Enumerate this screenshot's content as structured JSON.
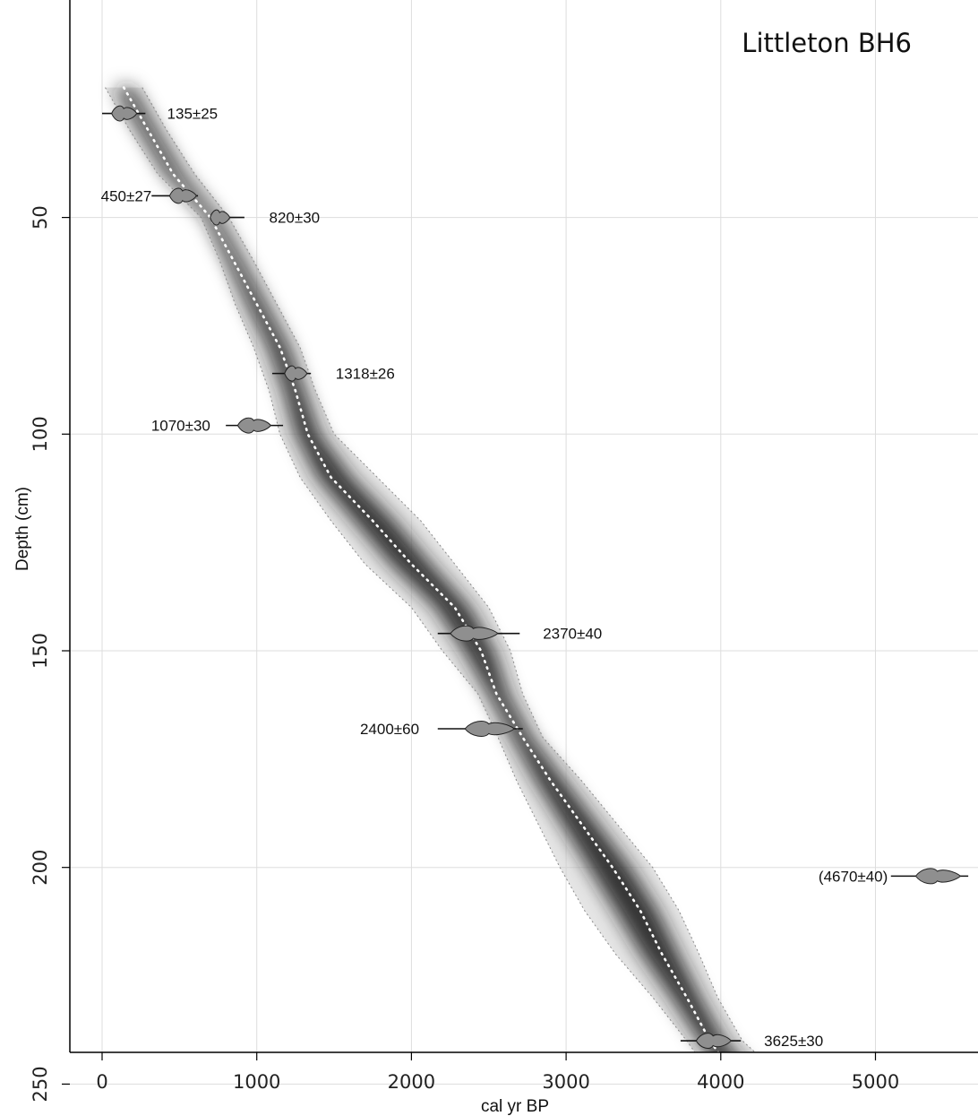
{
  "chart_data": {
    "type": "scatter",
    "title": "Littleton BH6",
    "xlabel": "cal yr BP",
    "ylabel": "Depth (cm)",
    "xlim": [
      -200,
      5600
    ],
    "ylim": [
      260,
      18
    ],
    "x_ticks": [
      "0",
      "1000",
      "2000",
      "3000",
      "4000",
      "5000"
    ],
    "y_ticks": [
      "50",
      "100",
      "150",
      "200",
      "250"
    ],
    "grid": true,
    "age_model": {
      "mean": [
        [
          20,
          140
        ],
        [
          30,
          300
        ],
        [
          40,
          460
        ],
        [
          50,
          700
        ],
        [
          60,
          850
        ],
        [
          70,
          1000
        ],
        [
          80,
          1150
        ],
        [
          90,
          1250
        ],
        [
          100,
          1330
        ],
        [
          110,
          1480
        ],
        [
          120,
          1750
        ],
        [
          130,
          2000
        ],
        [
          140,
          2280
        ],
        [
          150,
          2450
        ],
        [
          160,
          2550
        ],
        [
          170,
          2720
        ],
        [
          180,
          2900
        ],
        [
          190,
          3100
        ],
        [
          200,
          3300
        ],
        [
          210,
          3480
        ],
        [
          220,
          3620
        ],
        [
          230,
          3780
        ],
        [
          240,
          3930
        ],
        [
          250,
          4130
        ]
      ],
      "range_min": [
        [
          20,
          20
        ],
        [
          30,
          180
        ],
        [
          40,
          360
        ],
        [
          50,
          640
        ],
        [
          60,
          760
        ],
        [
          70,
          860
        ],
        [
          80,
          980
        ],
        [
          90,
          1080
        ],
        [
          100,
          1150
        ],
        [
          110,
          1280
        ],
        [
          120,
          1480
        ],
        [
          130,
          1700
        ],
        [
          140,
          2000
        ],
        [
          150,
          2200
        ],
        [
          160,
          2430
        ],
        [
          170,
          2560
        ],
        [
          180,
          2680
        ],
        [
          190,
          2820
        ],
        [
          200,
          2960
        ],
        [
          210,
          3120
        ],
        [
          220,
          3320
        ],
        [
          230,
          3560
        ],
        [
          240,
          3780
        ],
        [
          250,
          3980
        ]
      ],
      "range_max": [
        [
          20,
          260
        ],
        [
          30,
          420
        ],
        [
          40,
          600
        ],
        [
          50,
          820
        ],
        [
          60,
          980
        ],
        [
          70,
          1130
        ],
        [
          80,
          1280
        ],
        [
          90,
          1380
        ],
        [
          100,
          1500
        ],
        [
          110,
          1780
        ],
        [
          120,
          2060
        ],
        [
          130,
          2280
        ],
        [
          140,
          2500
        ],
        [
          150,
          2640
        ],
        [
          160,
          2720
        ],
        [
          170,
          2850
        ],
        [
          180,
          3100
        ],
        [
          190,
          3330
        ],
        [
          200,
          3560
        ],
        [
          210,
          3730
        ],
        [
          220,
          3860
        ],
        [
          230,
          3980
        ],
        [
          240,
          4140
        ],
        [
          250,
          4450
        ]
      ]
    },
    "dates": [
      {
        "label": "135±25",
        "depth": 26,
        "age": 140,
        "xmin": 0,
        "xmax": 280,
        "label_side": "right",
        "label_x": 420
      },
      {
        "label": "450±27",
        "depth": 45,
        "age": 520,
        "xmin": 320,
        "xmax": 620,
        "label_side": "left",
        "label_x": 320
      },
      {
        "label": "820±30",
        "depth": 50,
        "age": 760,
        "xmin": 700,
        "xmax": 920,
        "label_side": "right",
        "label_x": 1080
      },
      {
        "label": "1318±26",
        "depth": 86,
        "age": 1250,
        "xmin": 1100,
        "xmax": 1350,
        "label_side": "right",
        "label_x": 1510
      },
      {
        "label": "1070±30",
        "depth": 98,
        "age": 980,
        "xmin": 800,
        "xmax": 1170,
        "label_side": "left",
        "label_x": 700
      },
      {
        "label": "2370±40",
        "depth": 146,
        "age": 2400,
        "xmin": 2170,
        "xmax": 2700,
        "label_side": "right",
        "label_x": 2850
      },
      {
        "label": "2400±60",
        "depth": 168,
        "age": 2500,
        "xmin": 2170,
        "xmax": 2720,
        "label_side": "left",
        "label_x": 2050
      },
      {
        "label": "(4670±40)",
        "depth": 202,
        "age": 5400,
        "xmin": 5100,
        "xmax": 5600,
        "label_side": "left",
        "label_x": 5080
      },
      {
        "label": "3625±30",
        "depth": 240,
        "age": 3950,
        "xmin": 3740,
        "xmax": 4130,
        "label_side": "right",
        "label_x": 4280
      }
    ]
  }
}
